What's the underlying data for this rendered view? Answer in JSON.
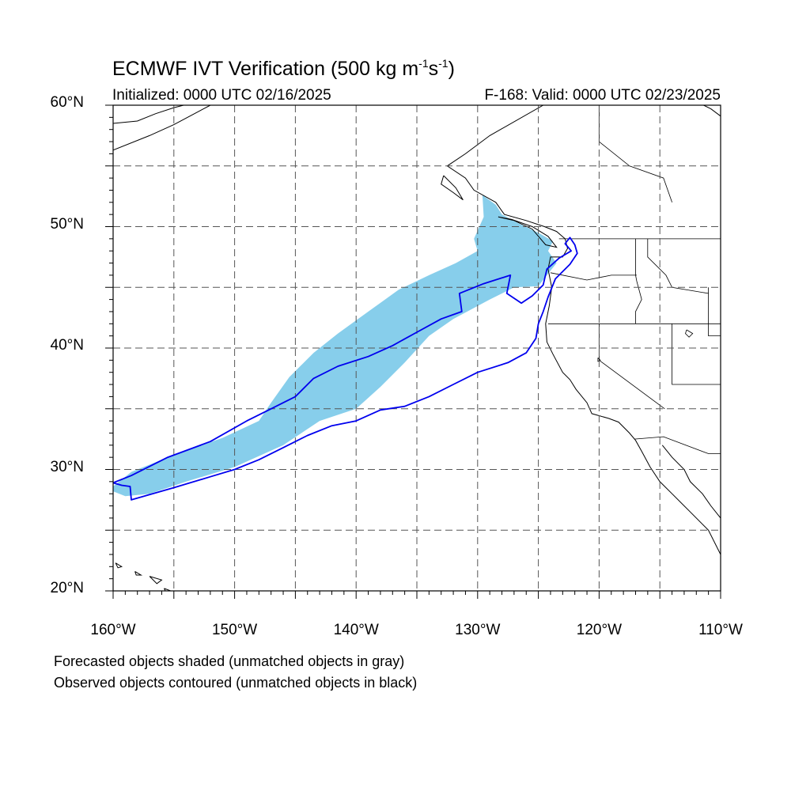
{
  "title": {
    "main": "ECMWF IVT Verification (500 kg m",
    "exp1": "-1",
    "mid": "s",
    "exp2": "-1",
    "end": ")"
  },
  "subtitle": {
    "left": "Initialized: 0000 UTC 02/16/2025",
    "right": "F-168: Valid: 0000 UTC 02/23/2025"
  },
  "axes": {
    "lon_range": [
      -160,
      -110
    ],
    "lat_range": [
      20,
      60
    ],
    "lon_ticks": [
      "160°W",
      "150°W",
      "140°W",
      "130°W",
      "120°W",
      "110°W"
    ],
    "lat_ticks": [
      "60°N",
      "50°N",
      "40°N",
      "30°N",
      "20°N"
    ],
    "grid": true,
    "grid_step_deg": 5
  },
  "legend": {
    "line1": "Forecasted objects shaded (unmatched objects in gray)",
    "line2": "Observed objects contoured (unmatched objects in black)"
  },
  "colors": {
    "forecast_fill": "#87ceeb",
    "observed_contour": "#0000ee",
    "coastline": "#000000",
    "grid": "#555555"
  },
  "map_data": {
    "forecast_object": [
      [
        -160.0,
        28.6
      ],
      [
        -158.5,
        29.8
      ],
      [
        -155.0,
        31.2
      ],
      [
        -151.0,
        32.6
      ],
      [
        -148.0,
        34.0
      ],
      [
        -147.0,
        35.5
      ],
      [
        -145.5,
        37.6
      ],
      [
        -143.5,
        39.6
      ],
      [
        -141.5,
        41.2
      ],
      [
        -139.0,
        43.0
      ],
      [
        -136.5,
        44.8
      ],
      [
        -134.0,
        46.0
      ],
      [
        -131.8,
        47.0
      ],
      [
        -130.0,
        48.0
      ],
      [
        -130.3,
        49.0
      ],
      [
        -129.5,
        50.8
      ],
      [
        -129.6,
        52.6
      ],
      [
        -128.5,
        51.8
      ],
      [
        -128.0,
        51.0
      ],
      [
        -126.5,
        50.2
      ],
      [
        -125.0,
        49.5
      ],
      [
        -123.8,
        48.8
      ],
      [
        -124.2,
        48.0
      ],
      [
        -123.5,
        47.0
      ],
      [
        -124.3,
        46.0
      ],
      [
        -125.0,
        45.1
      ],
      [
        -127.0,
        45.0
      ],
      [
        -129.0,
        44.0
      ],
      [
        -132.0,
        42.4
      ],
      [
        -134.0,
        41.0
      ],
      [
        -136.0,
        38.8
      ],
      [
        -138.0,
        36.8
      ],
      [
        -140.0,
        35.0
      ],
      [
        -143.0,
        34.0
      ],
      [
        -146.0,
        32.0
      ],
      [
        -150.0,
        30.2
      ],
      [
        -154.0,
        29.0
      ],
      [
        -157.0,
        28.0
      ],
      [
        -159.0,
        27.8
      ],
      [
        -160.0,
        28.2
      ]
    ],
    "observed_object": [
      [
        -160.0,
        28.9
      ],
      [
        -158.5,
        29.5
      ],
      [
        -155.5,
        31.0
      ],
      [
        -152.0,
        32.3
      ],
      [
        -149.0,
        34.0
      ],
      [
        -147.0,
        35.0
      ],
      [
        -145.0,
        36.0
      ],
      [
        -143.5,
        37.5
      ],
      [
        -141.5,
        38.5
      ],
      [
        -139.0,
        39.3
      ],
      [
        -137.0,
        40.2
      ],
      [
        -135.0,
        41.3
      ],
      [
        -133.0,
        42.4
      ],
      [
        -131.3,
        43.0
      ],
      [
        -131.5,
        44.5
      ],
      [
        -129.5,
        45.3
      ],
      [
        -127.3,
        46.0
      ],
      [
        -127.6,
        44.5
      ],
      [
        -126.4,
        43.7
      ],
      [
        -125.5,
        44.3
      ],
      [
        -124.6,
        45.2
      ],
      [
        -124.3,
        46.5
      ],
      [
        -123.3,
        47.4
      ],
      [
        -122.3,
        48.0
      ],
      [
        -122.8,
        48.6
      ],
      [
        -122.4,
        49.1
      ],
      [
        -122.0,
        48.5
      ],
      [
        -121.8,
        47.8
      ],
      [
        -122.4,
        46.9
      ],
      [
        -123.6,
        45.7
      ],
      [
        -124.2,
        44.2
      ],
      [
        -124.6,
        43.0
      ],
      [
        -125.0,
        42.0
      ],
      [
        -125.2,
        40.8
      ],
      [
        -126.0,
        39.6
      ],
      [
        -127.5,
        38.8
      ],
      [
        -130.0,
        38.0
      ],
      [
        -132.0,
        37.0
      ],
      [
        -134.0,
        36.0
      ],
      [
        -136.0,
        35.2
      ],
      [
        -138.0,
        34.9
      ],
      [
        -140.0,
        34.0
      ],
      [
        -142.0,
        33.6
      ],
      [
        -144.0,
        32.8
      ],
      [
        -146.0,
        31.8
      ],
      [
        -148.0,
        30.8
      ],
      [
        -150.0,
        30.0
      ],
      [
        -152.0,
        29.4
      ],
      [
        -155.0,
        28.5
      ],
      [
        -158.5,
        27.5
      ],
      [
        -158.6,
        28.6
      ],
      [
        -159.3,
        28.7
      ],
      [
        -160.0,
        28.9
      ]
    ],
    "coastlines": [
      [
        [
          -124.6,
          60.0
        ],
        [
          -129.0,
          57.5
        ],
        [
          -131.0,
          56.0
        ],
        [
          -132.5,
          55.0
        ],
        [
          -131.0,
          54.0
        ],
        [
          -130.3,
          53.0
        ],
        [
          -128.5,
          52.0
        ],
        [
          -127.8,
          51.0
        ],
        [
          -126.0,
          50.5
        ],
        [
          -124.5,
          50.0
        ],
        [
          -123.5,
          49.6
        ],
        [
          -122.8,
          49.0
        ],
        [
          -122.6,
          48.2
        ],
        [
          -123.0,
          47.5
        ],
        [
          -124.0,
          47.5
        ],
        [
          -124.2,
          46.5
        ],
        [
          -123.9,
          45.0
        ],
        [
          -124.1,
          43.5
        ],
        [
          -124.4,
          42.0
        ],
        [
          -124.3,
          40.5
        ],
        [
          -123.8,
          39.5
        ],
        [
          -123.0,
          38.0
        ],
        [
          -122.4,
          37.4
        ],
        [
          -121.9,
          36.6
        ],
        [
          -121.0,
          35.5
        ],
        [
          -120.6,
          34.6
        ],
        [
          -119.2,
          34.2
        ],
        [
          -118.4,
          33.9
        ],
        [
          -117.5,
          33.0
        ],
        [
          -117.0,
          32.4
        ],
        [
          -116.5,
          31.5
        ],
        [
          -115.8,
          30.2
        ],
        [
          -115.0,
          29.0
        ],
        [
          -114.0,
          28.0
        ],
        [
          -112.5,
          26.5
        ],
        [
          -111.0,
          25.0
        ],
        [
          -110.0,
          23.0
        ]
      ],
      [
        [
          -132.8,
          54.2
        ],
        [
          -133.0,
          53.5
        ],
        [
          -132.0,
          52.8
        ],
        [
          -131.2,
          52.2
        ],
        [
          -131.8,
          53.2
        ],
        [
          -132.8,
          54.2
        ]
      ],
      [
        [
          -128.3,
          50.8
        ],
        [
          -127.0,
          50.5
        ],
        [
          -125.5,
          49.8
        ],
        [
          -124.4,
          48.5
        ],
        [
          -123.5,
          48.3
        ],
        [
          -124.2,
          49.2
        ],
        [
          -125.5,
          50.0
        ],
        [
          -127.2,
          50.6
        ],
        [
          -128.3,
          50.8
        ]
      ],
      [
        [
          -114.8,
          32.0
        ],
        [
          -114.0,
          31.0
        ],
        [
          -113.0,
          30.0
        ],
        [
          -112.5,
          29.0
        ],
        [
          -111.5,
          28.0
        ],
        [
          -110.8,
          27.0
        ],
        [
          -110.0,
          26.0
        ]
      ],
      [
        [
          -160.0,
          56.3
        ],
        [
          -157.0,
          57.5
        ],
        [
          -155.0,
          58.4
        ],
        [
          -153.5,
          59.2
        ],
        [
          -152.0,
          60.0
        ]
      ],
      [
        [
          -160.0,
          58.5
        ],
        [
          -158.0,
          58.7
        ],
        [
          -156.5,
          59.3
        ],
        [
          -155.0,
          59.8
        ],
        [
          -154.2,
          60.0
        ]
      ],
      [
        [
          -110.0,
          59.1
        ],
        [
          -110.8,
          59.7
        ],
        [
          -111.4,
          60.0
        ]
      ],
      [
        [
          -159.8,
          22.3
        ],
        [
          -159.3,
          22.0
        ],
        [
          -159.6,
          21.9
        ],
        [
          -159.8,
          22.3
        ]
      ],
      [
        [
          -158.2,
          21.6
        ],
        [
          -157.7,
          21.3
        ],
        [
          -158.1,
          21.3
        ],
        [
          -158.2,
          21.6
        ]
      ],
      [
        [
          -157.0,
          21.2
        ],
        [
          -156.0,
          20.9
        ],
        [
          -156.4,
          20.6
        ],
        [
          -157.0,
          21.2
        ]
      ],
      [
        [
          -155.8,
          20.2
        ],
        [
          -155.0,
          19.9
        ],
        [
          -155.5,
          19.6
        ],
        [
          -155.8,
          20.2
        ]
      ]
    ],
    "borders": [
      [
        [
          -123.3,
          49.0
        ],
        [
          -110.0,
          49.0
        ]
      ],
      [
        [
          -124.2,
          42.0
        ],
        [
          -110.0,
          42.0
        ]
      ],
      [
        [
          -120.0,
          42.0
        ],
        [
          -120.0,
          39.0
        ],
        [
          -114.6,
          35.0
        ]
      ],
      [
        [
          -117.1,
          32.5
        ],
        [
          -114.7,
          32.7
        ],
        [
          -111.0,
          31.3
        ],
        [
          -110.0,
          31.3
        ]
      ],
      [
        [
          -117.0,
          49.0
        ],
        [
          -117.0,
          46.0
        ],
        [
          -116.9,
          45.5
        ],
        [
          -116.5,
          44.0
        ],
        [
          -117.0,
          43.0
        ],
        [
          -117.0,
          42.0
        ]
      ],
      [
        [
          -124.0,
          46.2
        ],
        [
          -121.0,
          45.6
        ],
        [
          -119.0,
          46.0
        ],
        [
          -116.9,
          46.0
        ]
      ],
      [
        [
          -116.0,
          49.0
        ],
        [
          -116.0,
          47.5
        ],
        [
          -114.5,
          46.0
        ],
        [
          -114.0,
          45.0
        ],
        [
          -111.0,
          44.5
        ]
      ],
      [
        [
          -111.0,
          45.0
        ],
        [
          -111.0,
          41.0
        ],
        [
          -110.0,
          41.0
        ]
      ],
      [
        [
          -114.0,
          42.0
        ],
        [
          -114.0,
          37.0
        ],
        [
          -110.0,
          37.0
        ]
      ],
      [
        [
          -120.0,
          60.0
        ],
        [
          -120.0,
          57.0
        ],
        [
          -117.5,
          55.0
        ],
        [
          -114.7,
          54.0
        ],
        [
          -114.0,
          52.0
        ]
      ]
    ],
    "lakes": [
      [
        [
          -112.8,
          41.5
        ],
        [
          -112.3,
          41.2
        ],
        [
          -112.6,
          40.9
        ],
        [
          -112.9,
          41.2
        ],
        [
          -112.8,
          41.5
        ]
      ],
      [
        [
          -120.1,
          39.2
        ],
        [
          -119.9,
          39.0
        ],
        [
          -120.1,
          38.9
        ],
        [
          -120.1,
          39.2
        ]
      ]
    ]
  }
}
